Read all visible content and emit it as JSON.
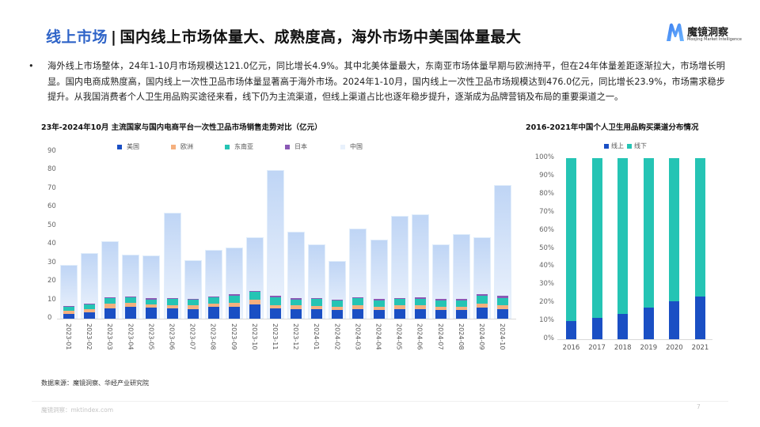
{
  "header": {
    "tag": "线上市场",
    "separator": "|",
    "title": "国内线上市场体量大、成熟度高，海外市场中美国体量最大",
    "logo_name": "魔镜洞察",
    "logo_sub": "Moojing Market Intelligence",
    "logo_icon": "m-logo-icon"
  },
  "summary": {
    "bullet": "•",
    "text": "海外线上市场整体，24年1-10月市场规模达121.0亿元，同比增长4.9%。其中北美体量最大，东南亚市场体量早期与欧洲持平，但在24年体量差距逐渐拉大，市场增长明显。国内电商成熟度高，国内线上一次性卫品市场体量显著高于海外市场。2024年1-10月，国内线上一次性卫品市场规模达到476.0亿元，同比增长23.9%，市场需求稳步提升。从我国消费者个人卫生用品购买途径来看，线下仍为主流渠道，但线上渠道占比也逐年稳步提升，逐渐成为品牌营销及布局的重要渠道之一。"
  },
  "colors": {
    "title_accent": "#2f64c8",
    "us": "#1a4fc4",
    "eu": "#f5b07e",
    "sea": "#25c4b4",
    "jp": "#8a59b5",
    "cn": "#cfe0f8",
    "online": "#1a4fc4",
    "offline": "#25c4b4"
  },
  "chart_data": [
    {
      "type": "bar",
      "title": "23年-2024年10月 主流国家与国内电商平台一次性卫品市场销售走势对比（亿元）",
      "xlabel": "",
      "ylabel": "亿元",
      "ylim": [
        0,
        90
      ],
      "yticks": [
        0,
        10,
        20,
        30,
        40,
        50,
        60,
        70,
        80,
        90
      ],
      "legend_position": "top",
      "grid": false,
      "categories": [
        "2023-01",
        "2023-02",
        "2023-03",
        "2023-04",
        "2023-05",
        "2023-06",
        "2023-07",
        "2023-08",
        "2023-09",
        "2023-10",
        "2023-11",
        "2023-12",
        "2024-01",
        "2024-02",
        "2024-03",
        "2024-04",
        "2024-05",
        "2024-06",
        "2024-07",
        "2024-08",
        "2024-09",
        "2024-10"
      ],
      "series": [
        {
          "name": "美国",
          "stacked": true,
          "values": [
            2.5,
            3.2,
            5.5,
            6.2,
            5.8,
            5.5,
            5.3,
            6.2,
            6.5,
            7.5,
            5.5,
            5.3,
            5.0,
            4.6,
            5.3,
            4.5,
            5.3,
            5.3,
            4.5,
            4.6,
            5.8,
            5.3
          ]
        },
        {
          "name": "欧洲",
          "stacked": true,
          "values": [
            1.8,
            2.0,
            2.5,
            2.5,
            1.8,
            1.8,
            1.8,
            2.0,
            2.0,
            2.6,
            1.8,
            1.8,
            1.8,
            1.6,
            1.8,
            1.8,
            1.8,
            2.0,
            1.8,
            1.8,
            2.2,
            2.0
          ]
        },
        {
          "name": "东南亚",
          "stacked": true,
          "values": [
            2.3,
            2.5,
            3.0,
            2.8,
            2.8,
            3.5,
            3.0,
            3.2,
            4.0,
            4.3,
            4.3,
            3.3,
            3.8,
            3.5,
            3.8,
            3.6,
            3.5,
            3.5,
            3.5,
            3.5,
            4.2,
            4.0
          ]
        },
        {
          "name": "日本",
          "stacked": true,
          "values": [
            0.4,
            0.4,
            0.4,
            0.5,
            0.5,
            0.5,
            0.5,
            0.5,
            0.6,
            0.6,
            0.6,
            0.5,
            0.6,
            0.6,
            0.7,
            0.9,
            0.6,
            0.8,
            0.8,
            0.6,
            1.0,
            0.9
          ]
        },
        {
          "name": "中国",
          "stacked": false,
          "values": [
            29,
            35.5,
            42,
            34.5,
            34,
            57,
            31.5,
            37,
            38.5,
            44,
            80,
            47,
            40,
            31,
            48.5,
            42.5,
            55.5,
            56.5,
            40,
            45.5,
            44,
            72
          ]
        }
      ]
    },
    {
      "type": "bar",
      "title": "2016-2021年中国个人卫生用品购买渠道分布情况",
      "xlabel": "",
      "ylabel": "",
      "ylim": [
        0,
        100
      ],
      "yticks": [
        "0%",
        "10%",
        "20%",
        "30%",
        "40%",
        "50%",
        "60%",
        "70%",
        "80%",
        "90%",
        "100%"
      ],
      "legend_position": "top",
      "grid": false,
      "stacked_percent": true,
      "categories": [
        "2016",
        "2017",
        "2018",
        "2019",
        "2020",
        "2021"
      ],
      "series": [
        {
          "name": "线上",
          "values": [
            10,
            12,
            14,
            17.5,
            21,
            23.5
          ]
        },
        {
          "name": "线下",
          "values": [
            90,
            88,
            86,
            82.5,
            79,
            76.5
          ]
        }
      ]
    }
  ],
  "footer": {
    "source": "数据来源：魔镜洞察、华经产业研究院",
    "site": "魔镜洞察：mktindex.com",
    "page": "7"
  }
}
